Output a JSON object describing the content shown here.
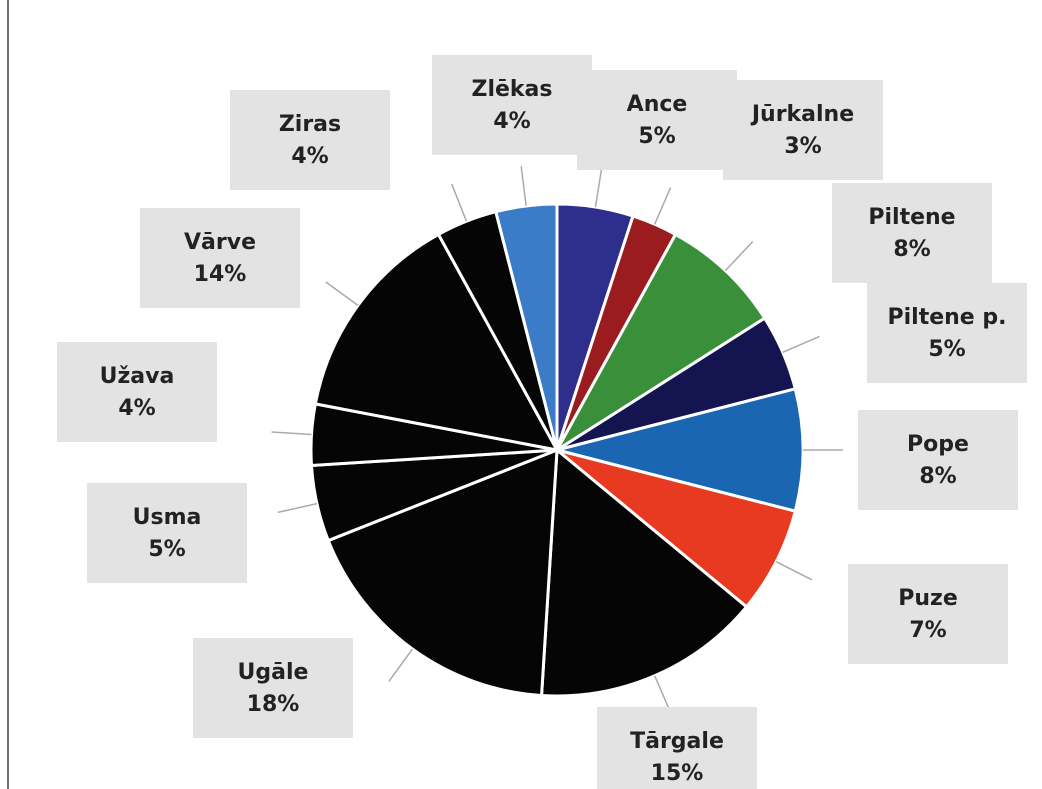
{
  "chart_data": {
    "type": "pie",
    "categories": [
      "Ance",
      "Jūrkalne",
      "Piltene",
      "Piltene p.",
      "Pope",
      "Puze",
      "Tārgale",
      "Ugāle",
      "Usma",
      "Užava",
      "Vārve",
      "Ziras",
      "Zlēkas"
    ],
    "values": [
      5,
      3,
      8,
      5,
      8,
      7,
      15,
      18,
      5,
      4,
      14,
      4,
      4
    ],
    "value_labels": [
      "5%",
      "3%",
      "8%",
      "5%",
      "8%",
      "7%",
      "15%",
      "18%",
      "5%",
      "4%",
      "14%",
      "4%",
      "4%"
    ],
    "colors": [
      "#2e2e8c",
      "#9b1c1f",
      "#3a8f3a",
      "#141450",
      "#1a66b3",
      "#e83a20",
      "#050505",
      "#050505",
      "#050505",
      "#050505",
      "#050505",
      "#050505",
      "#3a7cc8"
    ]
  }
}
